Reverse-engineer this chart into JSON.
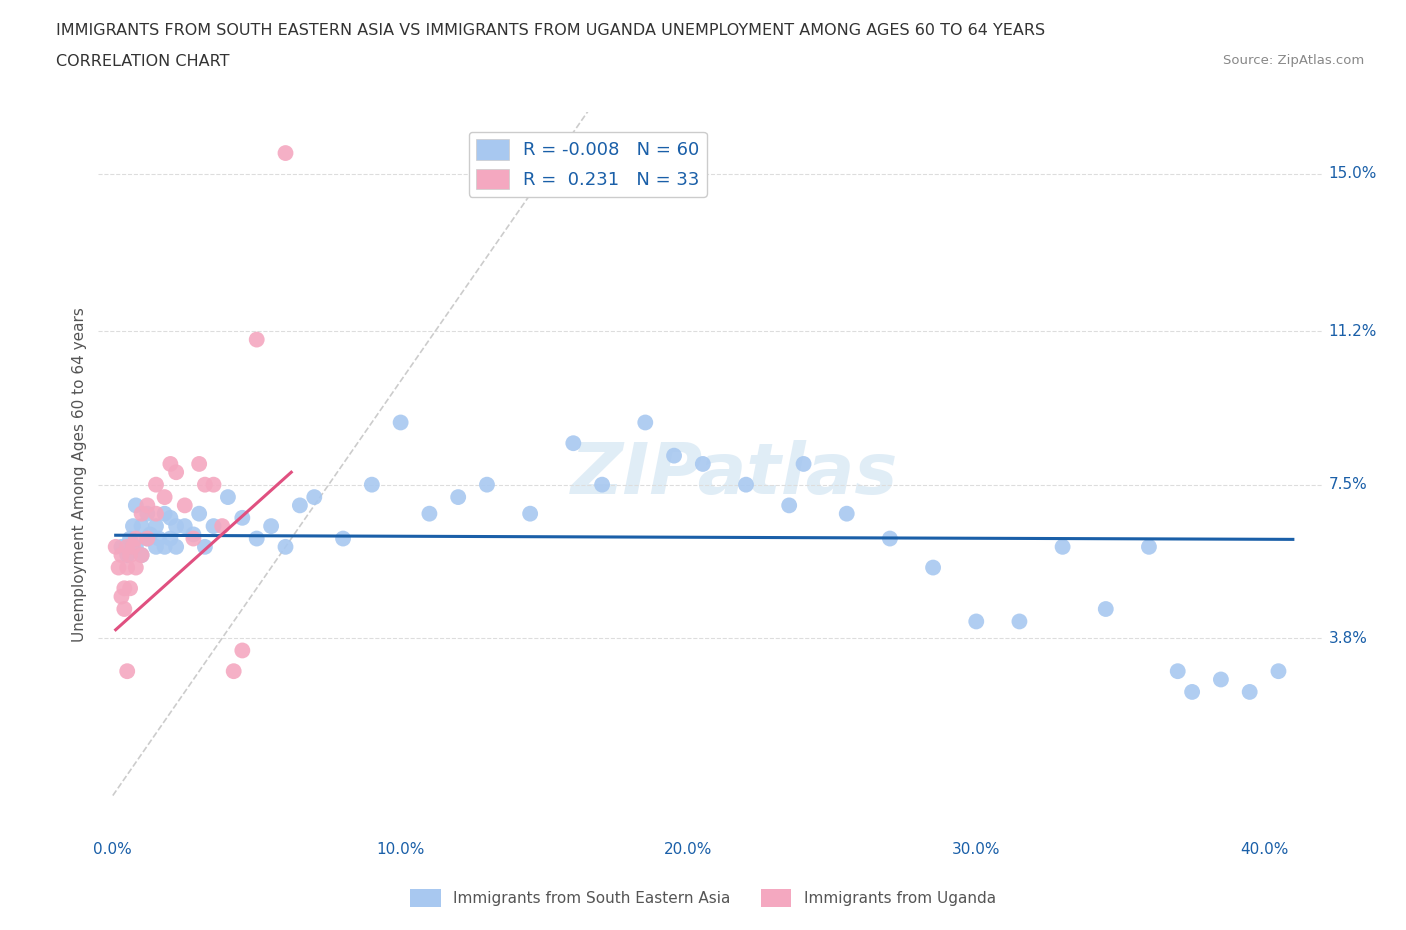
{
  "title_line1": "IMMIGRANTS FROM SOUTH EASTERN ASIA VS IMMIGRANTS FROM UGANDA UNEMPLOYMENT AMONG AGES 60 TO 64 YEARS",
  "title_line2": "CORRELATION CHART",
  "source": "Source: ZipAtlas.com",
  "xlabel_ticks": [
    "0.0%",
    "10.0%",
    "20.0%",
    "30.0%",
    "40.0%"
  ],
  "xlabel_tick_vals": [
    0.0,
    0.1,
    0.2,
    0.3,
    0.4
  ],
  "ylabel_ticks": [
    "3.8%",
    "7.5%",
    "11.2%",
    "15.0%"
  ],
  "ylabel_tick_vals": [
    0.038,
    0.075,
    0.112,
    0.15
  ],
  "ylabel_label": "Unemployment Among Ages 60 to 64 years",
  "xlim": [
    -0.005,
    0.42
  ],
  "ylim": [
    -0.01,
    0.165
  ],
  "legend_blue_r": "-0.008",
  "legend_blue_n": "60",
  "legend_pink_r": "0.231",
  "legend_pink_n": "33",
  "blue_color": "#a8c8f0",
  "pink_color": "#f4a8c0",
  "blue_line_color": "#1a5fa8",
  "pink_line_color": "#e05080",
  "diagonal_color": "#cccccc",
  "grid_color": "#dddddd",
  "watermark": "ZIPatlas",
  "blue_scatter_x": [
    0.003,
    0.005,
    0.006,
    0.007,
    0.008,
    0.008,
    0.01,
    0.01,
    0.012,
    0.012,
    0.013,
    0.015,
    0.015,
    0.016,
    0.018,
    0.018,
    0.02,
    0.02,
    0.022,
    0.022,
    0.025,
    0.028,
    0.03,
    0.032,
    0.035,
    0.04,
    0.045,
    0.05,
    0.055,
    0.06,
    0.065,
    0.07,
    0.08,
    0.09,
    0.1,
    0.11,
    0.12,
    0.13,
    0.145,
    0.16,
    0.17,
    0.185,
    0.195,
    0.205,
    0.22,
    0.235,
    0.24,
    0.255,
    0.27,
    0.285,
    0.3,
    0.315,
    0.33,
    0.345,
    0.36,
    0.37,
    0.375,
    0.385,
    0.395,
    0.405
  ],
  "blue_scatter_y": [
    0.06,
    0.058,
    0.062,
    0.065,
    0.06,
    0.07,
    0.058,
    0.065,
    0.062,
    0.068,
    0.063,
    0.06,
    0.065,
    0.062,
    0.06,
    0.068,
    0.062,
    0.067,
    0.06,
    0.065,
    0.065,
    0.063,
    0.068,
    0.06,
    0.065,
    0.072,
    0.067,
    0.062,
    0.065,
    0.06,
    0.07,
    0.072,
    0.062,
    0.075,
    0.09,
    0.068,
    0.072,
    0.075,
    0.068,
    0.085,
    0.075,
    0.09,
    0.082,
    0.08,
    0.075,
    0.07,
    0.08,
    0.068,
    0.062,
    0.055,
    0.042,
    0.042,
    0.06,
    0.045,
    0.06,
    0.03,
    0.025,
    0.028,
    0.025,
    0.03
  ],
  "pink_scatter_x": [
    0.001,
    0.002,
    0.003,
    0.003,
    0.004,
    0.004,
    0.005,
    0.005,
    0.005,
    0.006,
    0.006,
    0.007,
    0.008,
    0.008,
    0.01,
    0.01,
    0.012,
    0.012,
    0.015,
    0.015,
    0.018,
    0.02,
    0.022,
    0.025,
    0.028,
    0.03,
    0.032,
    0.035,
    0.038,
    0.042,
    0.045,
    0.05,
    0.06
  ],
  "pink_scatter_y": [
    0.06,
    0.055,
    0.058,
    0.048,
    0.05,
    0.045,
    0.06,
    0.055,
    0.03,
    0.058,
    0.05,
    0.06,
    0.062,
    0.055,
    0.068,
    0.058,
    0.07,
    0.062,
    0.075,
    0.068,
    0.072,
    0.08,
    0.078,
    0.07,
    0.062,
    0.08,
    0.075,
    0.075,
    0.065,
    0.03,
    0.035,
    0.11,
    0.155
  ],
  "blue_line_x": [
    0.001,
    0.41
  ],
  "blue_line_y": [
    0.0628,
    0.0618
  ],
  "pink_line_x": [
    0.001,
    0.062
  ],
  "pink_line_y": [
    0.04,
    0.078
  ]
}
